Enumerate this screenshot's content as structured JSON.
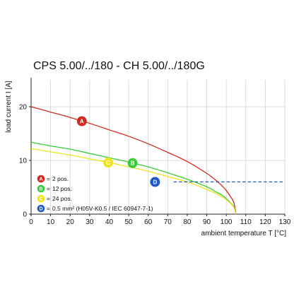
{
  "chart_data": {
    "type": "line",
    "title": "CPS 5.00/../180 - CH 5.00/../180G",
    "xlabel": "ambient temperature T [°C]",
    "ylabel": "load current I [A]",
    "xlim": [
      0,
      130
    ],
    "ylim": [
      0,
      25
    ],
    "xticks": [
      0,
      10,
      20,
      30,
      40,
      50,
      60,
      70,
      80,
      90,
      100,
      110,
      120,
      130
    ],
    "yticks": [
      0,
      10,
      20
    ],
    "grid": true,
    "legend_position": "bottom-left",
    "legend_separator": "=",
    "series": [
      {
        "key": "A",
        "name": "2 pos.",
        "color": "#d12a1f",
        "style": "solid",
        "x": [
          0,
          10,
          20,
          30,
          40,
          50,
          60,
          70,
          80,
          90,
          95,
          98,
          100,
          103,
          104,
          105
        ],
        "y": [
          20,
          19.0,
          18.0,
          16.9,
          15.7,
          14.5,
          13.1,
          11.5,
          9.8,
          7.6,
          6.2,
          5.2,
          4.4,
          2.8,
          2.0,
          0
        ],
        "marker_at": [
          26,
          17.3
        ]
      },
      {
        "key": "B",
        "name": "12 pos.",
        "color": "#38cc38",
        "style": "solid",
        "x": [
          0,
          10,
          20,
          30,
          40,
          50,
          60,
          70,
          80,
          90,
          95,
          98,
          100,
          103,
          104,
          105
        ],
        "y": [
          13.4,
          12.7,
          12.1,
          11.3,
          10.5,
          9.7,
          8.8,
          7.7,
          6.5,
          5.1,
          4.1,
          3.5,
          2.9,
          1.8,
          1.3,
          0
        ],
        "marker_at": [
          52,
          9.5
        ]
      },
      {
        "key": "C",
        "name": "24 pos.",
        "color": "#efe41f",
        "style": "solid",
        "x": [
          0,
          10,
          20,
          30,
          40,
          50,
          60,
          70,
          80,
          90,
          95,
          98,
          100,
          103,
          104,
          105
        ],
        "y": [
          12.2,
          11.6,
          11.0,
          10.3,
          9.6,
          8.8,
          8.0,
          7.0,
          6.0,
          4.6,
          3.8,
          3.2,
          2.7,
          1.7,
          1.2,
          0
        ],
        "marker_at": [
          39.5,
          9.6
        ]
      },
      {
        "key": "D",
        "name": "0.5 mm² (H05V-K0.5 / IEC 60947-7-1)",
        "color": "#1f58c9",
        "style": "dashed",
        "x": [
          73,
          130
        ],
        "y": [
          6,
          6
        ],
        "marker_at": [
          63.5,
          6
        ]
      }
    ]
  }
}
